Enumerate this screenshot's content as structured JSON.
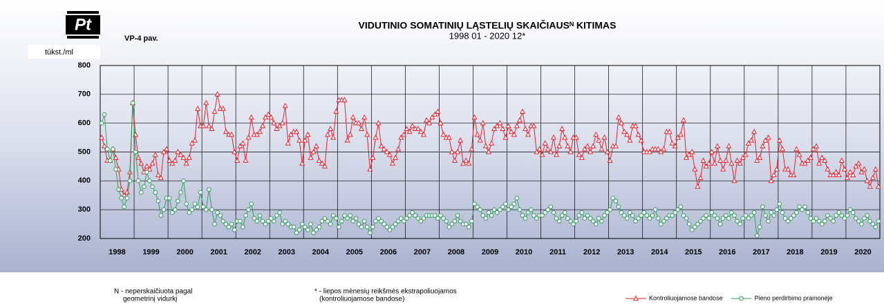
{
  "header": {
    "logo": "Pt",
    "figure_label": "VP-4 pav."
  },
  "chart_data": {
    "type": "line",
    "title": "VIDUTINIO SOMATINIŲ LĄSTELIŲ SKAIČIAUSᴺ KITIMAS",
    "subtitle": "1998 01 - 2020 12*",
    "y_label": "tūkst./ml",
    "ylim": [
      200,
      800
    ],
    "yticks": [
      200,
      300,
      400,
      500,
      600,
      700,
      800
    ],
    "grid": true,
    "legend": "bottom-right",
    "categories": [
      null,
      null,
      null,
      null,
      null,
      null,
      "1998",
      null,
      null,
      null,
      null,
      null,
      null,
      null,
      null,
      null,
      null,
      null,
      "1999",
      null,
      null,
      null,
      null,
      null,
      null,
      null,
      null,
      null,
      null,
      null,
      "2000",
      null,
      null,
      null,
      null,
      null,
      null,
      null,
      null,
      null,
      null,
      null,
      "2001",
      null,
      null,
      null,
      null,
      null,
      null,
      null,
      null,
      null,
      null,
      null,
      "2002",
      null,
      null,
      null,
      null,
      null,
      null,
      null,
      null,
      null,
      null,
      null,
      "2003",
      null,
      null,
      null,
      null,
      null,
      null,
      null,
      null,
      null,
      null,
      null,
      "2004",
      null,
      null,
      null,
      null,
      null,
      null,
      null,
      null,
      null,
      null,
      null,
      "2005",
      null,
      null,
      null,
      null,
      null,
      null,
      null,
      null,
      null,
      null,
      null,
      "2006",
      null,
      null,
      null,
      null,
      null,
      null,
      null,
      null,
      null,
      null,
      null,
      "2007",
      null,
      null,
      null,
      null,
      null,
      null,
      null,
      null,
      null,
      null,
      null,
      "2008",
      null,
      null,
      null,
      null,
      null,
      null,
      null,
      null,
      null,
      null,
      null,
      "2009",
      null,
      null,
      null,
      null,
      null,
      null,
      null,
      null,
      null,
      null,
      null,
      "2010",
      null,
      null,
      null,
      null,
      null,
      null,
      null,
      null,
      null,
      null,
      null,
      "2011",
      null,
      null,
      null,
      null,
      null,
      null,
      null,
      null,
      null,
      null,
      null,
      "2012",
      null,
      null,
      null,
      null,
      null,
      null,
      null,
      null,
      null,
      null,
      null,
      "2013",
      null,
      null,
      null,
      null,
      null,
      null,
      null,
      null,
      null,
      null,
      null,
      "2014",
      null,
      null,
      null,
      null,
      null,
      null,
      null,
      null,
      null,
      null,
      null,
      "2015",
      null,
      null,
      null,
      null,
      null,
      null,
      null,
      null,
      null,
      null,
      null,
      "2016",
      null,
      null,
      null,
      null,
      null,
      null,
      null,
      null,
      null,
      null,
      null,
      "2017",
      null,
      null,
      null,
      null,
      null,
      null,
      null,
      null,
      null,
      null,
      null,
      "2018",
      null,
      null,
      null,
      null,
      null,
      null,
      null,
      null,
      null,
      null,
      null,
      "2019",
      null,
      null,
      null,
      null,
      null,
      null,
      null,
      null,
      null,
      null,
      null,
      "2020",
      null,
      null,
      null,
      null,
      null
    ],
    "series": [
      {
        "name": "Kontroliuojamose bandose",
        "color": "#e8202a",
        "marker": "triangle",
        "values": [
          550,
          520,
          470,
          470,
          510,
          480,
          440,
          370,
          350,
          360,
          430,
          670,
          560,
          480,
          460,
          430,
          450,
          440,
          460,
          490,
          420,
          410,
          500,
          510,
          470,
          460,
          470,
          500,
          490,
          480,
          460,
          480,
          530,
          540,
          650,
          590,
          590,
          670,
          590,
          580,
          640,
          700,
          650,
          650,
          570,
          560,
          560,
          500,
          470,
          520,
          530,
          470,
          550,
          620,
          560,
          560,
          570,
          590,
          620,
          630,
          620,
          600,
          580,
          590,
          600,
          660,
          530,
          560,
          570,
          570,
          540,
          460,
          540,
          560,
          480,
          500,
          520,
          470,
          460,
          450,
          560,
          580,
          550,
          640,
          680,
          680,
          680,
          540,
          560,
          620,
          600,
          600,
          580,
          620,
          560,
          440,
          480,
          550,
          600,
          520,
          510,
          500,
          490,
          460,
          480,
          510,
          550,
          560,
          580,
          570,
          590,
          580,
          580,
          570,
          560,
          610,
          600,
          620,
          630,
          640,
          600,
          560,
          550,
          550,
          500,
          470,
          500,
          540,
          460,
          470,
          460,
          510,
          620,
          560,
          540,
          600,
          520,
          500,
          530,
          580,
          590,
          600,
          580,
          550,
          590,
          570,
          560,
          590,
          610,
          640,
          580,
          560,
          590,
          590,
          500,
          510,
          490,
          530,
          510,
          500,
          550,
          490,
          520,
          580,
          550,
          520,
          500,
          550,
          550,
          490,
          480,
          510,
          520,
          500,
          520,
          560,
          540,
          510,
          550,
          500,
          470,
          520,
          520,
          620,
          600,
          570,
          560,
          540,
          590,
          590,
          560,
          540,
          500,
          500,
          500,
          510,
          510,
          510,
          500,
          510,
          570,
          570,
          530,
          520,
          550,
          560,
          610,
          480,
          490,
          500,
          440,
          380,
          410,
          470,
          450,
          460,
          500,
          460,
          520,
          470,
          440,
          470,
          520,
          460,
          400,
          470,
          460,
          480,
          490,
          530,
          540,
          570,
          470,
          480,
          520,
          540,
          550,
          400,
          420,
          440,
          540,
          510,
          440,
          440,
          420,
          420,
          510,
          490,
          460,
          460,
          470,
          480,
          510,
          520,
          460,
          480,
          470,
          440,
          420,
          420,
          430,
          420,
          470,
          440,
          410,
          430,
          420,
          450,
          460,
          430,
          440,
          400,
          380,
          410,
          440,
          380
        ]
      },
      {
        "name": "Pieno perdirbimo pramonėje",
        "color": "#2e9e5a",
        "marker": "circle",
        "values": [
          600,
          630,
          510,
          470,
          510,
          440,
          370,
          340,
          310,
          340,
          400,
          670,
          500,
          400,
          360,
          380,
          430,
          400,
          380,
          360,
          330,
          280,
          300,
          340,
          340,
          290,
          300,
          330,
          360,
          400,
          320,
          290,
          300,
          320,
          310,
          360,
          310,
          300,
          370,
          300,
          250,
          290,
          280,
          260,
          250,
          240,
          250,
          230,
          260,
          260,
          240,
          280,
          300,
          320,
          270,
          260,
          280,
          260,
          250,
          260,
          270,
          260,
          280,
          290,
          250,
          260,
          250,
          240,
          240,
          220,
          230,
          250,
          240,
          230,
          250,
          220,
          230,
          240,
          260,
          270,
          260,
          250,
          280,
          270,
          240,
          260,
          280,
          270,
          280,
          260,
          270,
          250,
          240,
          260,
          240,
          220,
          240,
          260,
          270,
          260,
          250,
          240,
          230,
          240,
          250,
          260,
          270,
          260,
          270,
          280,
          290,
          280,
          270,
          260,
          270,
          280,
          280,
          280,
          280,
          270,
          280,
          270,
          260,
          240,
          250,
          260,
          280,
          260,
          250,
          250,
          240,
          260,
          320,
          310,
          300,
          280,
          270,
          290,
          280,
          300,
          290,
          300,
          310,
          320,
          300,
          310,
          320,
          340,
          300,
          280,
          270,
          290,
          300,
          280,
          270,
          280,
          280,
          290,
          300,
          310,
          290,
          270,
          260,
          280,
          290,
          270,
          260,
          250,
          260,
          280,
          290,
          270,
          280,
          270,
          260,
          250,
          270,
          260,
          280,
          290,
          300,
          340,
          330,
          310,
          290,
          280,
          270,
          290,
          280,
          260,
          270,
          280,
          290,
          280,
          270,
          280,
          300,
          270,
          250,
          260,
          270,
          280,
          280,
          290,
          300,
          310,
          280,
          270,
          250,
          230,
          240,
          250,
          260,
          270,
          280,
          270,
          290,
          280,
          270,
          250,
          270,
          280,
          270,
          290,
          280,
          260,
          250,
          270,
          280,
          270,
          280,
          290,
          210,
          240,
          310,
          280,
          260,
          290,
          280,
          300,
          320,
          290,
          270,
          260,
          270,
          280,
          290,
          310,
          300,
          310,
          290,
          270,
          260,
          270,
          260,
          250,
          260,
          280,
          270,
          260,
          280,
          290,
          280,
          270,
          280,
          300,
          290,
          270,
          260,
          250,
          270,
          280,
          260,
          250,
          240,
          260
        ]
      }
    ]
  },
  "footnotes": {
    "n_note": [
      "N - neperskaičiuota pagal",
      "geometrinį vidurkį"
    ],
    "star_note": [
      "* - liepos mėnesių reikšmės ekstrapoliuojamos",
      "(kontroliuojamose bandose)"
    ]
  }
}
